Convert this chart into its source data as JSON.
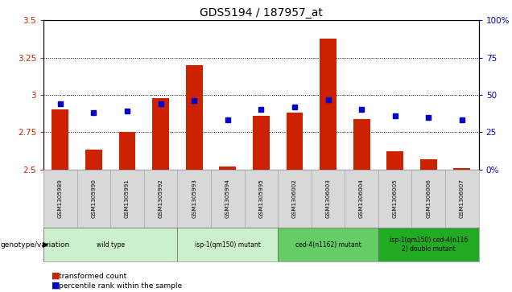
{
  "title": "GDS5194 / 187957_at",
  "samples": [
    "GSM1305989",
    "GSM1305990",
    "GSM1305991",
    "GSM1305992",
    "GSM1305993",
    "GSM1305994",
    "GSM1305995",
    "GSM1306002",
    "GSM1306003",
    "GSM1306004",
    "GSM1306005",
    "GSM1306006",
    "GSM1306007"
  ],
  "red_values": [
    2.9,
    2.63,
    2.75,
    2.98,
    3.2,
    2.52,
    2.86,
    2.88,
    3.38,
    2.84,
    2.62,
    2.57,
    2.51
  ],
  "blue_values": [
    44,
    38,
    39,
    44,
    46,
    33,
    40,
    42,
    47,
    40,
    36,
    35,
    33
  ],
  "ylim_left": [
    2.5,
    3.5
  ],
  "ylim_right": [
    0,
    100
  ],
  "yticks_left": [
    2.5,
    2.75,
    3.0,
    3.25,
    3.5
  ],
  "yticks_right": [
    0,
    25,
    50,
    75,
    100
  ],
  "ytick_labels_left": [
    "2.5",
    "2.75",
    "3",
    "3.25",
    "3.5"
  ],
  "ytick_labels_right": [
    "0%",
    "25",
    "50",
    "75",
    "100%"
  ],
  "grid_values": [
    2.75,
    3.0,
    3.25
  ],
  "groups": [
    {
      "label": "wild type",
      "indices": [
        0,
        1,
        2,
        3
      ],
      "color": "#ccf0cc"
    },
    {
      "label": "isp-1(qm150) mutant",
      "indices": [
        4,
        5,
        6
      ],
      "color": "#ccf0cc"
    },
    {
      "label": "ced-4(n1162) mutant",
      "indices": [
        7,
        8,
        9
      ],
      "color": "#66cc66"
    },
    {
      "label": "isp-1(qm150) ced-4(n116\n2) double mutant",
      "indices": [
        10,
        11,
        12
      ],
      "color": "#22aa22"
    }
  ],
  "bar_color": "#cc2200",
  "blue_color": "#0000cc",
  "baseline": 2.5,
  "legend_items": [
    {
      "label": "transformed count",
      "color": "#cc2200"
    },
    {
      "label": "percentile rank within the sample",
      "color": "#0000cc"
    }
  ],
  "ylabel_left_color": "#cc2200",
  "ylabel_right_color": "#0000cc",
  "sample_bg_color": "#d8d8d8",
  "plot_bg": "#ffffff",
  "genotype_label": "genotype/variation"
}
